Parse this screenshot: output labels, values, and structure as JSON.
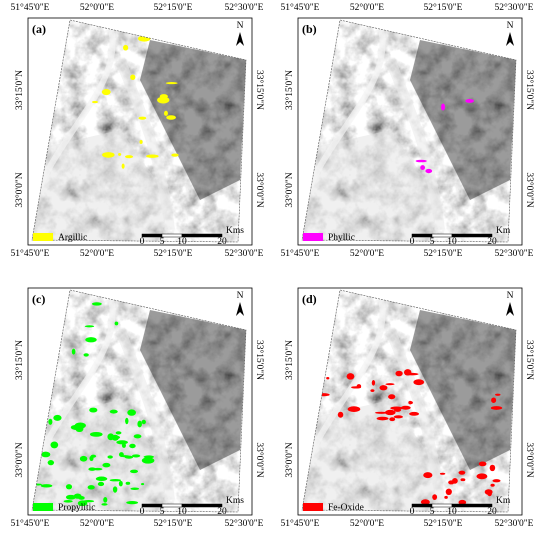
{
  "panels": [
    {
      "label": "(a)",
      "legend": "Argillic",
      "legend_color": "#ffff00",
      "scale_unit": "Kms"
    },
    {
      "label": "(b)",
      "legend": "Phyllic",
      "legend_color": "#ff00ff",
      "scale_unit": "Km"
    },
    {
      "label": "(c)",
      "legend": "Propylitic",
      "legend_color": "#00ff00",
      "scale_unit": "Kms"
    },
    {
      "label": "(d)",
      "legend": "Fe-Oxide",
      "legend_color": "#ff0000",
      "scale_unit": "Km"
    }
  ],
  "lon_labels": [
    "51°45'0\"E",
    "52°0'0\"E",
    "52°15'0\"E",
    "52°30'0\"E"
  ],
  "lat_labels": [
    "33°15'0\"N",
    "33°0'0\"N"
  ],
  "scale_ticks": [
    0,
    5,
    10,
    20
  ],
  "north": "N"
}
